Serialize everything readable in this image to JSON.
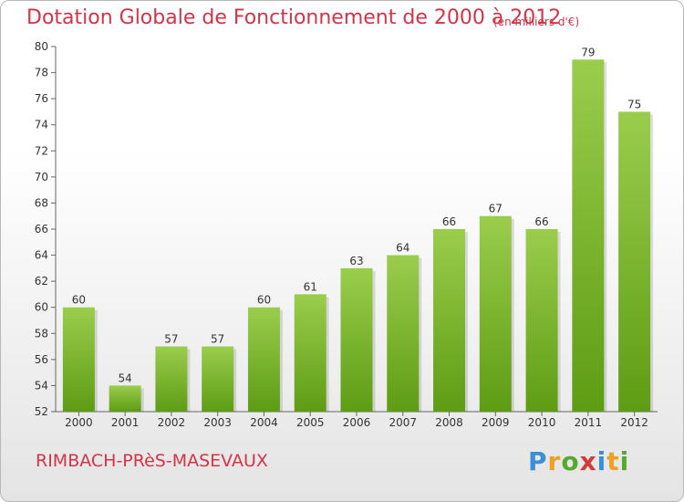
{
  "chart_data": {
    "type": "bar",
    "title": "Dotation Globale de Fonctionnement de 2000 à 2012",
    "subtitle": "(en milliers d'€)",
    "categories": [
      "2000",
      "2001",
      "2002",
      "2003",
      "2004",
      "2005",
      "2006",
      "2007",
      "2008",
      "2009",
      "2010",
      "2011",
      "2012"
    ],
    "values": [
      60,
      54,
      57,
      57,
      60,
      61,
      63,
      64,
      66,
      67,
      66,
      79,
      75
    ],
    "data_labels": [
      "60",
      "54",
      "57",
      "57",
      "60",
      "61",
      "63",
      "64",
      "66",
      "67",
      "66",
      "79",
      "75"
    ],
    "ylim": [
      52,
      80
    ],
    "yticks": [
      52,
      54,
      56,
      58,
      60,
      62,
      64,
      66,
      68,
      70,
      72,
      74,
      76,
      78,
      80
    ],
    "ytick_labels": [
      "52",
      "54",
      "56",
      "58",
      "60",
      "62",
      "64",
      "66",
      "68",
      "70",
      "72",
      "74",
      "76",
      "78",
      "80"
    ],
    "grid": false,
    "bar_color_top": "#9acd4c",
    "bar_color_bottom": "#5e9c14"
  },
  "commune": "RIMBACH-PRèS-MASEVAUX",
  "logo": {
    "letters": [
      "P",
      "r",
      "o",
      "x",
      "i",
      "t",
      "i"
    ],
    "colors": [
      "#3a8fd6",
      "#f0a020",
      "#55a830",
      "#d33a3a",
      "#3a8fd6",
      "#f0a020",
      "#55a830"
    ]
  },
  "colors": {
    "accent": "#d3344a"
  }
}
